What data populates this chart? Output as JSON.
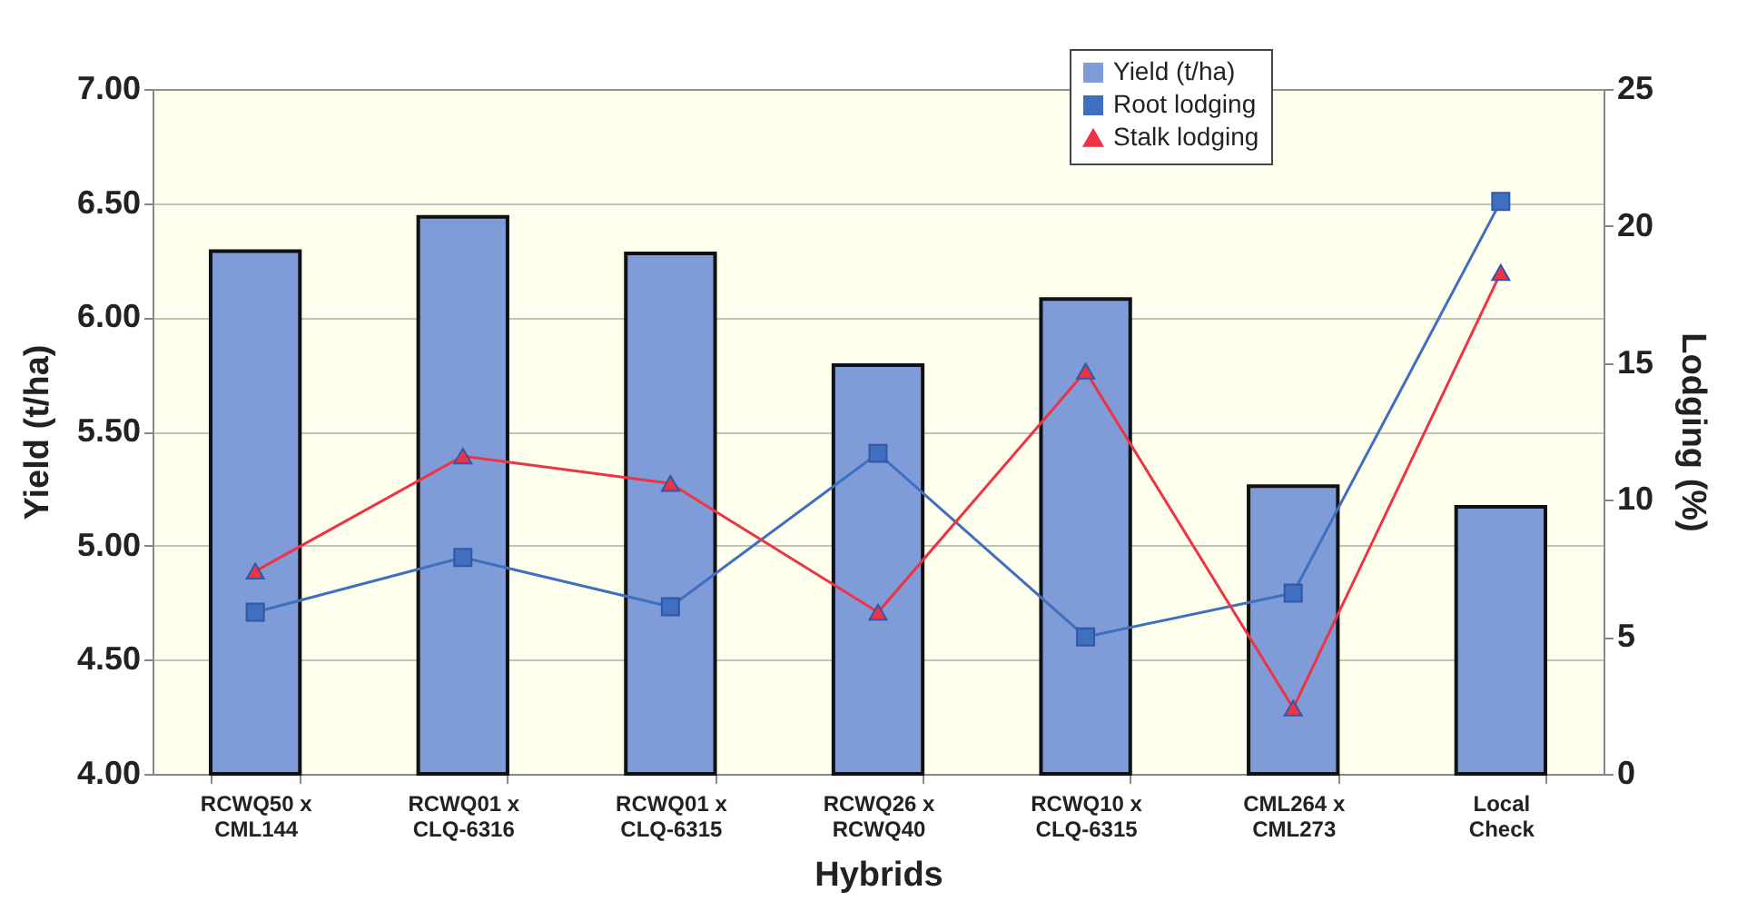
{
  "chart_data": {
    "type": "bar",
    "xlabel": "Hybrids",
    "ylabel": "Yield (t/ha)",
    "y2label": "Lodging (%)",
    "categories": [
      "RCWQ50 x CML144",
      "RCWQ01 x CLQ-6316",
      "RCWQ01 x CLQ-6315",
      "RCWQ26 x RCWQ40",
      "RCWQ10 x CLQ-6315",
      "CML264 x CML273",
      "Local Check"
    ],
    "series": [
      {
        "name": "Yield (t/ha)",
        "color": "#7f9cd8",
        "values": [
          6.29,
          6.44,
          6.28,
          5.79,
          6.08,
          5.26,
          5.17
        ]
      },
      {
        "name": "Root lodging",
        "type": "line",
        "axis": "y2",
        "marker": "square",
        "color": "#3f6fbf",
        "values": [
          5.9,
          7.9,
          6.1,
          11.7,
          5.0,
          6.6,
          20.9
        ]
      },
      {
        "name": "Stalk lodging",
        "type": "line",
        "axis": "y2",
        "marker": "triangle",
        "color": "#ee3344",
        "values": [
          7.4,
          11.6,
          10.6,
          5.9,
          14.7,
          2.4,
          18.3
        ]
      }
    ],
    "ylim": [
      4,
      7
    ],
    "yticks": [
      {
        "value": 4,
        "label": "4.00"
      },
      {
        "value": 4.5,
        "label": "4.50"
      },
      {
        "value": 5,
        "label": "5.00"
      },
      {
        "value": 5.5,
        "label": "5.50"
      },
      {
        "value": 6,
        "label": "6.00"
      },
      {
        "value": 6.5,
        "label": "6.50"
      },
      {
        "value": 7,
        "label": "7.00"
      }
    ],
    "y2lim": [
      0,
      25
    ],
    "y2ticks": [
      0,
      5,
      10,
      15,
      20,
      25
    ],
    "grid": "y",
    "legend": "top right"
  }
}
